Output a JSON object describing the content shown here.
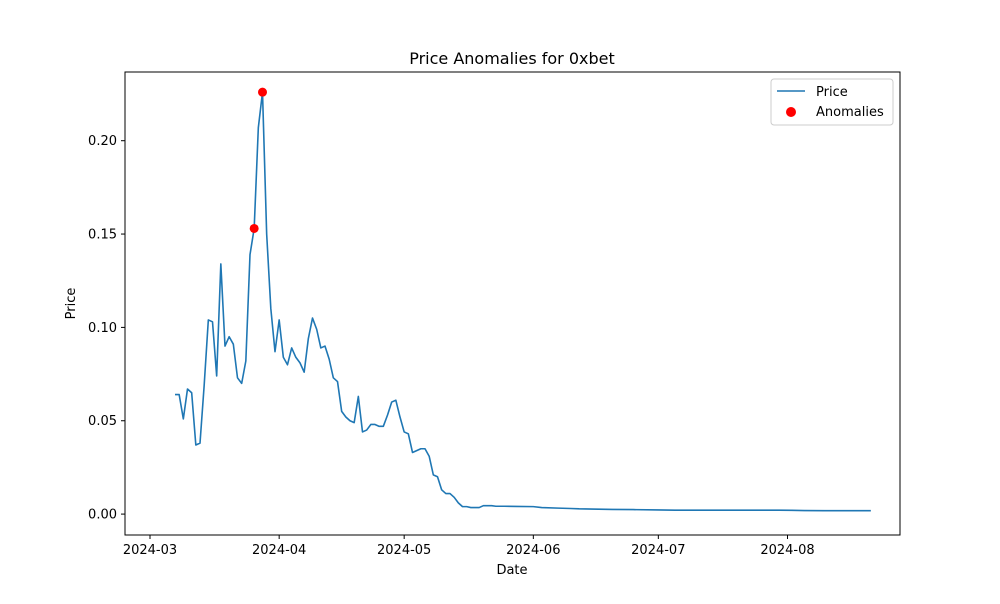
{
  "chart_data": {
    "type": "line",
    "title": "Price Anomalies for 0xbet",
    "xlabel": "Date",
    "ylabel": "Price",
    "x_scale": "date",
    "xlim": [
      "2024-02-24",
      "2024-08-28"
    ],
    "ylim": [
      -0.0112,
      0.2368
    ],
    "x_ticks": [
      "2024-03-01",
      "2024-04-01",
      "2024-05-01",
      "2024-06-01",
      "2024-07-01",
      "2024-08-01"
    ],
    "x_tick_labels": [
      "2024-03",
      "2024-04",
      "2024-05",
      "2024-06",
      "2024-07",
      "2024-08"
    ],
    "y_ticks": [
      0.0,
      0.05,
      0.1,
      0.15,
      0.2
    ],
    "y_tick_labels": [
      "0.00",
      "0.05",
      "0.10",
      "0.15",
      "0.20"
    ],
    "grid": false,
    "legend": {
      "placement": "top-right",
      "entries": [
        "Price",
        "Anomalies"
      ]
    },
    "colors": {
      "price_line": "#1f77b4",
      "anomalies": "#ff0000"
    },
    "series": [
      {
        "name": "Price",
        "kind": "line",
        "x": [
          "2024-03-07",
          "2024-03-08",
          "2024-03-09",
          "2024-03-10",
          "2024-03-11",
          "2024-03-12",
          "2024-03-13",
          "2024-03-14",
          "2024-03-15",
          "2024-03-16",
          "2024-03-17",
          "2024-03-18",
          "2024-03-19",
          "2024-03-20",
          "2024-03-21",
          "2024-03-22",
          "2024-03-23",
          "2024-03-24",
          "2024-03-25",
          "2024-03-26",
          "2024-03-27",
          "2024-03-28",
          "2024-03-29",
          "2024-03-30",
          "2024-03-31",
          "2024-04-01",
          "2024-04-02",
          "2024-04-03",
          "2024-04-04",
          "2024-04-05",
          "2024-04-06",
          "2024-04-07",
          "2024-04-08",
          "2024-04-09",
          "2024-04-10",
          "2024-04-11",
          "2024-04-12",
          "2024-04-13",
          "2024-04-14",
          "2024-04-15",
          "2024-04-16",
          "2024-04-17",
          "2024-04-18",
          "2024-04-19",
          "2024-04-20",
          "2024-04-21",
          "2024-04-22",
          "2024-04-23",
          "2024-04-24",
          "2024-04-25",
          "2024-04-26",
          "2024-04-27",
          "2024-04-28",
          "2024-04-29",
          "2024-04-30",
          "2024-05-01",
          "2024-05-02",
          "2024-05-03",
          "2024-05-04",
          "2024-05-05",
          "2024-05-06",
          "2024-05-07",
          "2024-05-08",
          "2024-05-09",
          "2024-05-10",
          "2024-05-11",
          "2024-05-12",
          "2024-05-13",
          "2024-05-14",
          "2024-05-15",
          "2024-05-16",
          "2024-05-17",
          "2024-05-18",
          "2024-05-19",
          "2024-05-20",
          "2024-05-21",
          "2024-05-22",
          "2024-05-23",
          "2024-05-25",
          "2024-05-28",
          "2024-06-01",
          "2024-06-03",
          "2024-06-07",
          "2024-06-10",
          "2024-06-12",
          "2024-06-15",
          "2024-06-20",
          "2024-06-25",
          "2024-07-01",
          "2024-07-05",
          "2024-07-10",
          "2024-07-15",
          "2024-07-20",
          "2024-07-25",
          "2024-07-30",
          "2024-08-02",
          "2024-08-05",
          "2024-08-10",
          "2024-08-15",
          "2024-08-21"
        ],
        "y": [
          0.064,
          0.064,
          0.051,
          0.067,
          0.065,
          0.037,
          0.038,
          0.069,
          0.104,
          0.103,
          0.074,
          0.134,
          0.09,
          0.095,
          0.091,
          0.073,
          0.07,
          0.082,
          0.139,
          0.153,
          0.207,
          0.226,
          0.15,
          0.11,
          0.087,
          0.104,
          0.084,
          0.08,
          0.089,
          0.084,
          0.081,
          0.076,
          0.094,
          0.105,
          0.099,
          0.089,
          0.09,
          0.083,
          0.073,
          0.071,
          0.055,
          0.052,
          0.05,
          0.049,
          0.063,
          0.044,
          0.045,
          0.048,
          0.048,
          0.047,
          0.047,
          0.053,
          0.06,
          0.061,
          0.052,
          0.044,
          0.043,
          0.033,
          0.034,
          0.035,
          0.035,
          0.031,
          0.021,
          0.02,
          0.013,
          0.011,
          0.011,
          0.009,
          0.006,
          0.004,
          0.004,
          0.0035,
          0.0035,
          0.0035,
          0.0045,
          0.0045,
          0.0045,
          0.0042,
          0.0042,
          0.0041,
          0.004,
          0.0035,
          0.0032,
          0.003,
          0.0028,
          0.0027,
          0.0025,
          0.0024,
          0.0022,
          0.0021,
          0.0021,
          0.0021,
          0.0021,
          0.0021,
          0.0021,
          0.002,
          0.0019,
          0.0018,
          0.0018,
          0.0018
        ]
      },
      {
        "name": "Anomalies",
        "kind": "scatter",
        "x": [
          "2024-03-26",
          "2024-03-28"
        ],
        "y": [
          0.153,
          0.226
        ]
      }
    ]
  }
}
